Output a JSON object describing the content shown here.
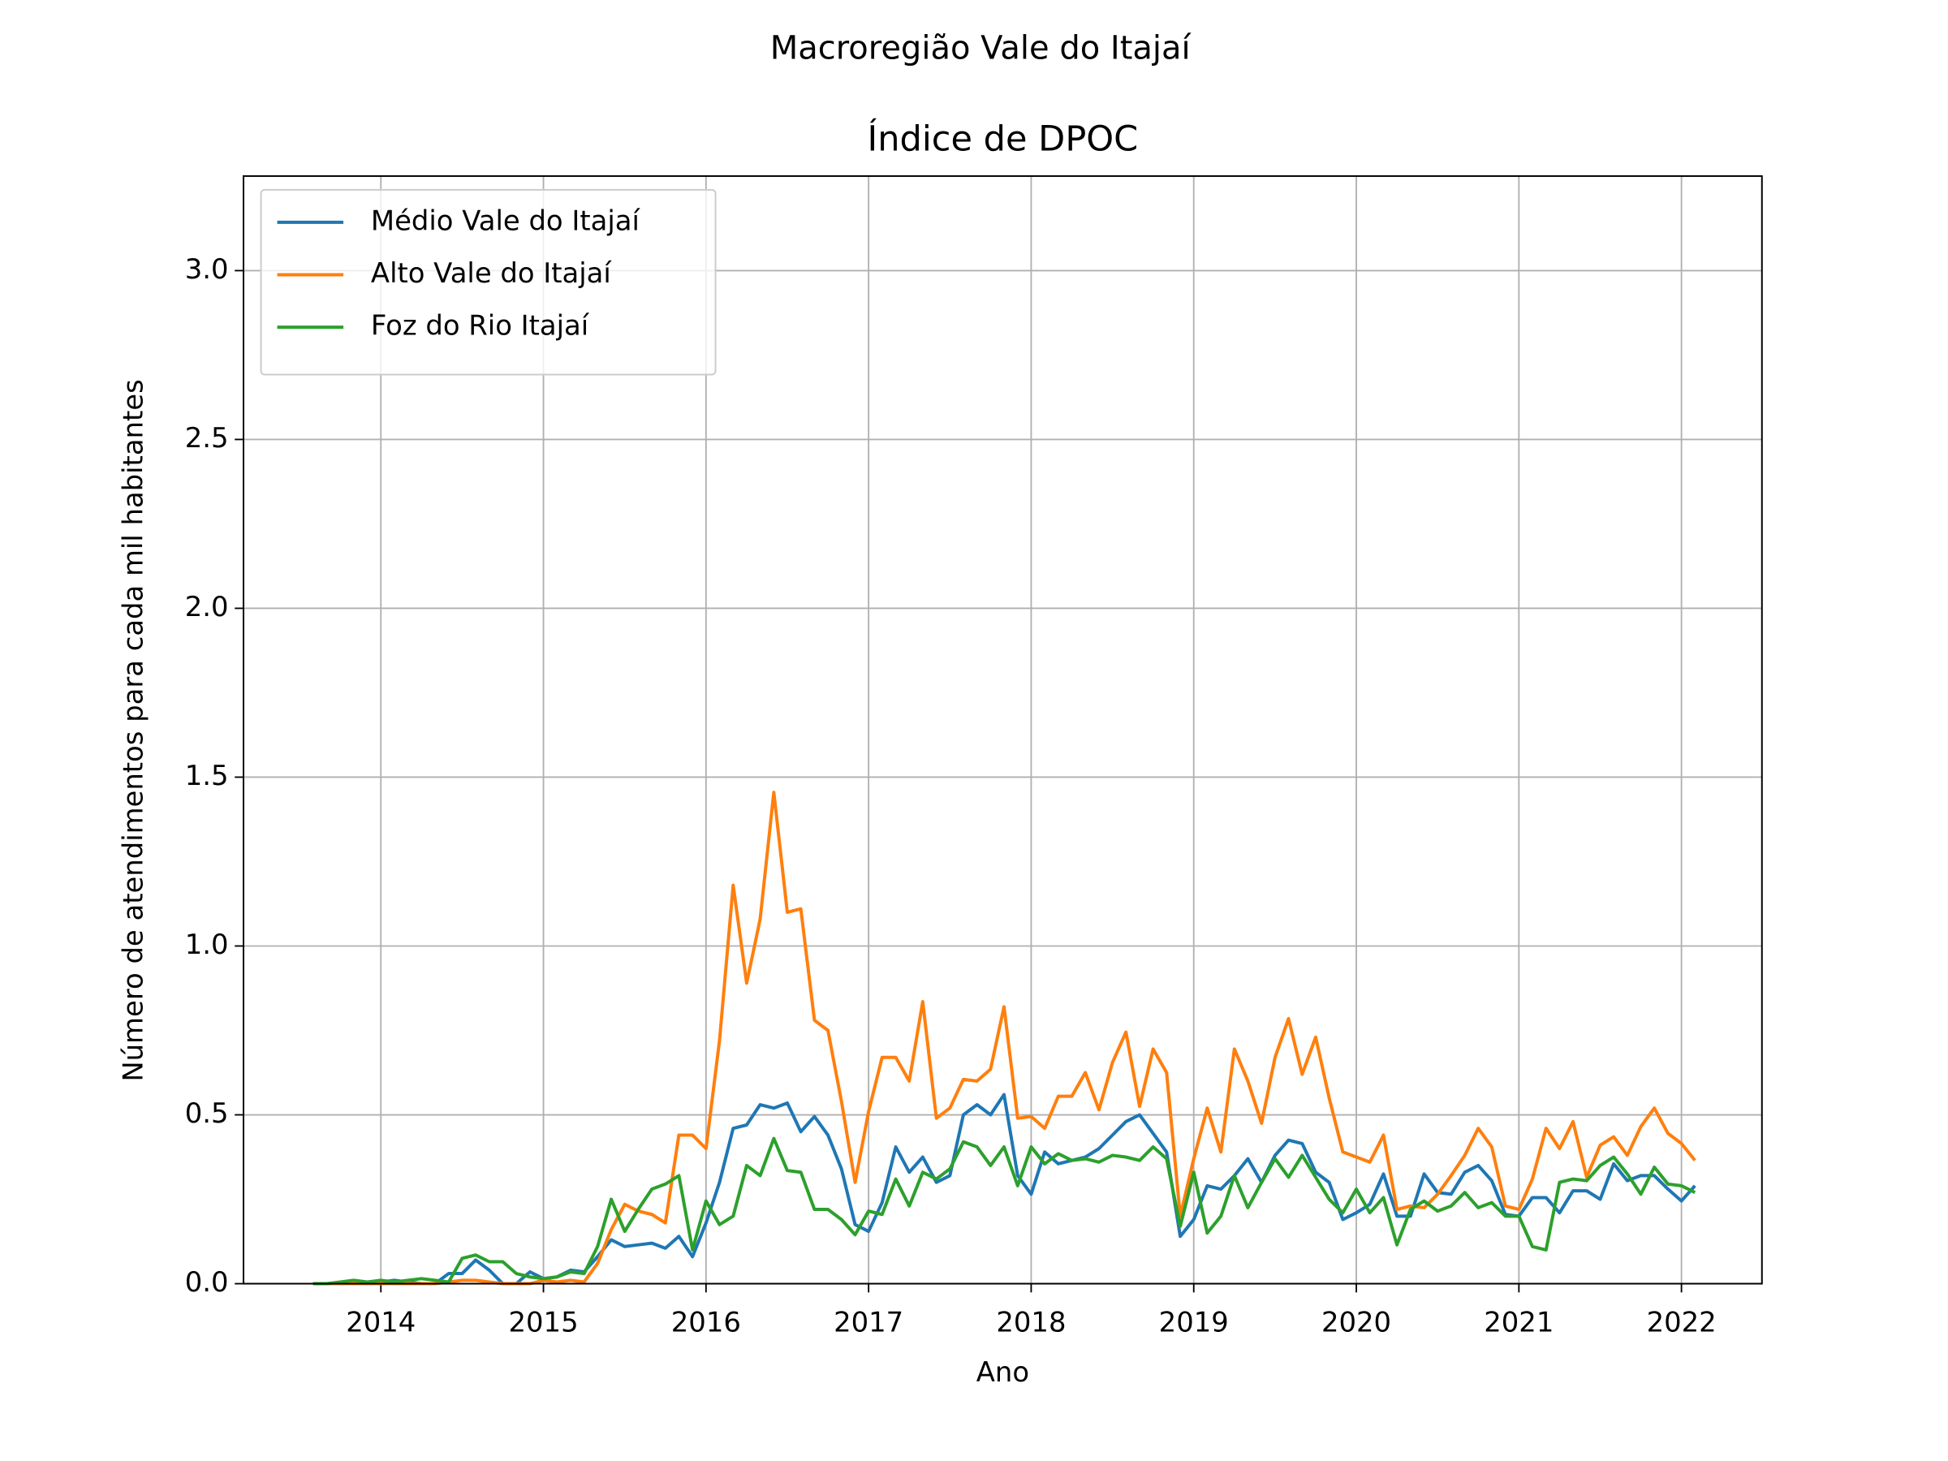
{
  "chart_data": {
    "type": "line",
    "suptitle": "Macroregião Vale do Itajaí",
    "title": "Índice de DPOC",
    "xlabel": "Ano",
    "ylabel": "Número de atendimentos para cada mil habitantes",
    "x": [
      2013.583,
      2013.667,
      2013.75,
      2013.833,
      2013.917,
      2014,
      2014.083,
      2014.167,
      2014.25,
      2014.333,
      2014.417,
      2014.5,
      2014.583,
      2014.667,
      2014.75,
      2014.833,
      2014.917,
      2015,
      2015.083,
      2015.167,
      2015.25,
      2015.333,
      2015.417,
      2015.5,
      2015.583,
      2015.667,
      2015.75,
      2015.833,
      2015.917,
      2016,
      2016.083,
      2016.167,
      2016.25,
      2016.333,
      2016.417,
      2016.5,
      2016.583,
      2016.667,
      2016.75,
      2016.833,
      2016.917,
      2017,
      2017.083,
      2017.167,
      2017.25,
      2017.333,
      2017.417,
      2017.5,
      2017.583,
      2017.667,
      2017.75,
      2017.833,
      2017.917,
      2018,
      2018.083,
      2018.167,
      2018.25,
      2018.333,
      2018.417,
      2018.5,
      2018.583,
      2018.667,
      2018.75,
      2018.833,
      2018.917,
      2019,
      2019.083,
      2019.167,
      2019.25,
      2019.333,
      2019.417,
      2019.5,
      2019.583,
      2019.667,
      2019.75,
      2019.833,
      2019.917,
      2020,
      2020.083,
      2020.167,
      2020.25,
      2020.333,
      2020.417,
      2020.5,
      2020.583,
      2020.667,
      2020.75,
      2020.833,
      2020.917,
      2021,
      2021.083,
      2021.167,
      2021.25,
      2021.333,
      2021.417,
      2021.5,
      2021.583,
      2021.667,
      2021.75,
      2021.833,
      2021.917,
      2022,
      2022.083
    ],
    "series": [
      {
        "name": "Médio Vale do Itajaí",
        "color": "#1f77b4",
        "values": [
          0,
          0,
          0,
          0,
          0.005,
          0.005,
          0.01,
          0.005,
          0,
          0,
          0.03,
          0.03,
          0.07,
          0.04,
          0,
          0,
          0.035,
          0.015,
          0.02,
          0.04,
          0.035,
          0.08,
          0.13,
          0.11,
          0.115,
          0.12,
          0.105,
          0.14,
          0.08,
          0.18,
          0.3,
          0.46,
          0.47,
          0.53,
          0.52,
          0.535,
          0.45,
          0.495,
          0.44,
          0.34,
          0.175,
          0.155,
          0.24,
          0.405,
          0.33,
          0.375,
          0.3,
          0.32,
          0.5,
          0.53,
          0.5,
          0.56,
          0.32,
          0.265,
          0.39,
          0.355,
          0.365,
          0.375,
          0.4,
          0.44,
          0.48,
          0.5,
          0.445,
          0.39,
          0.14,
          0.19,
          0.29,
          0.28,
          0.32,
          0.37,
          0.3,
          0.38,
          0.425,
          0.415,
          0.33,
          0.3,
          0.19,
          0.21,
          0.235,
          0.325,
          0.2,
          0.2,
          0.325,
          0.27,
          0.265,
          0.33,
          0.35,
          0.305,
          0.205,
          0.2,
          0.255,
          0.255,
          0.21,
          0.275,
          0.275,
          0.25,
          0.355,
          0.305,
          0.32,
          0.32,
          0.28,
          0.245,
          0.29
        ]
      },
      {
        "name": "Alto Vale do Itajaí",
        "color": "#ff7f0e",
        "values": [
          0,
          0,
          0,
          0,
          0,
          0,
          0,
          0,
          0,
          0,
          0.005,
          0.01,
          0.01,
          0.005,
          0,
          0,
          0,
          0.01,
          0.005,
          0.01,
          0.005,
          0.06,
          0.16,
          0.235,
          0.215,
          0.205,
          0.18,
          0.44,
          0.44,
          0.4,
          0.72,
          1.18,
          0.89,
          1.08,
          1.455,
          1.1,
          1.11,
          0.78,
          0.75,
          0.54,
          0.3,
          0.51,
          0.67,
          0.67,
          0.6,
          0.835,
          0.49,
          0.52,
          0.605,
          0.6,
          0.635,
          0.82,
          0.49,
          0.495,
          0.46,
          0.555,
          0.555,
          0.625,
          0.515,
          0.655,
          0.745,
          0.525,
          0.695,
          0.625,
          0.2,
          0.37,
          0.52,
          0.39,
          0.695,
          0.6,
          0.475,
          0.67,
          0.785,
          0.62,
          0.73,
          0.55,
          0.39,
          0.375,
          0.36,
          0.44,
          0.22,
          0.23,
          0.225,
          0.265,
          0.32,
          0.38,
          0.46,
          0.405,
          0.23,
          0.22,
          0.31,
          0.46,
          0.4,
          0.48,
          0.315,
          0.41,
          0.435,
          0.38,
          0.465,
          0.52,
          0.445,
          0.415,
          0.365
        ]
      },
      {
        "name": "Foz do Rio Itajaí",
        "color": "#2ca02c",
        "values": [
          0,
          0,
          0.005,
          0.01,
          0.005,
          0.01,
          0.005,
          0.01,
          0.015,
          0.01,
          0.005,
          0.075,
          0.085,
          0.065,
          0.065,
          0.03,
          0.02,
          0.015,
          0.02,
          0.035,
          0.03,
          0.11,
          0.25,
          0.155,
          0.22,
          0.28,
          0.295,
          0.32,
          0.1,
          0.245,
          0.175,
          0.2,
          0.35,
          0.32,
          0.43,
          0.335,
          0.33,
          0.22,
          0.22,
          0.19,
          0.145,
          0.215,
          0.205,
          0.31,
          0.23,
          0.33,
          0.31,
          0.34,
          0.42,
          0.405,
          0.35,
          0.405,
          0.29,
          0.405,
          0.355,
          0.385,
          0.365,
          0.37,
          0.36,
          0.38,
          0.375,
          0.365,
          0.405,
          0.37,
          0.17,
          0.33,
          0.15,
          0.2,
          0.32,
          0.225,
          0.3,
          0.37,
          0.315,
          0.38,
          0.315,
          0.25,
          0.21,
          0.28,
          0.21,
          0.255,
          0.115,
          0.22,
          0.245,
          0.215,
          0.23,
          0.27,
          0.225,
          0.24,
          0.2,
          0.2,
          0.11,
          0.1,
          0.3,
          0.31,
          0.305,
          0.35,
          0.375,
          0.325,
          0.265,
          0.345,
          0.295,
          0.29,
          0.27
        ]
      }
    ],
    "xlim": [
      2013.155,
      2022.495
    ],
    "ylim": [
      0,
      3.28
    ],
    "xticks": [
      2014,
      2015,
      2016,
      2017,
      2018,
      2019,
      2020,
      2021,
      2022
    ],
    "yticks": [
      {
        "value": 0,
        "label": "0.0"
      },
      0.5,
      {
        "value": 1,
        "label": "1.0"
      },
      1.5,
      {
        "value": 2,
        "label": "2.0"
      },
      2.5,
      {
        "value": 3,
        "label": "3.0"
      }
    ],
    "grid": true,
    "legend": "upper-left"
  }
}
